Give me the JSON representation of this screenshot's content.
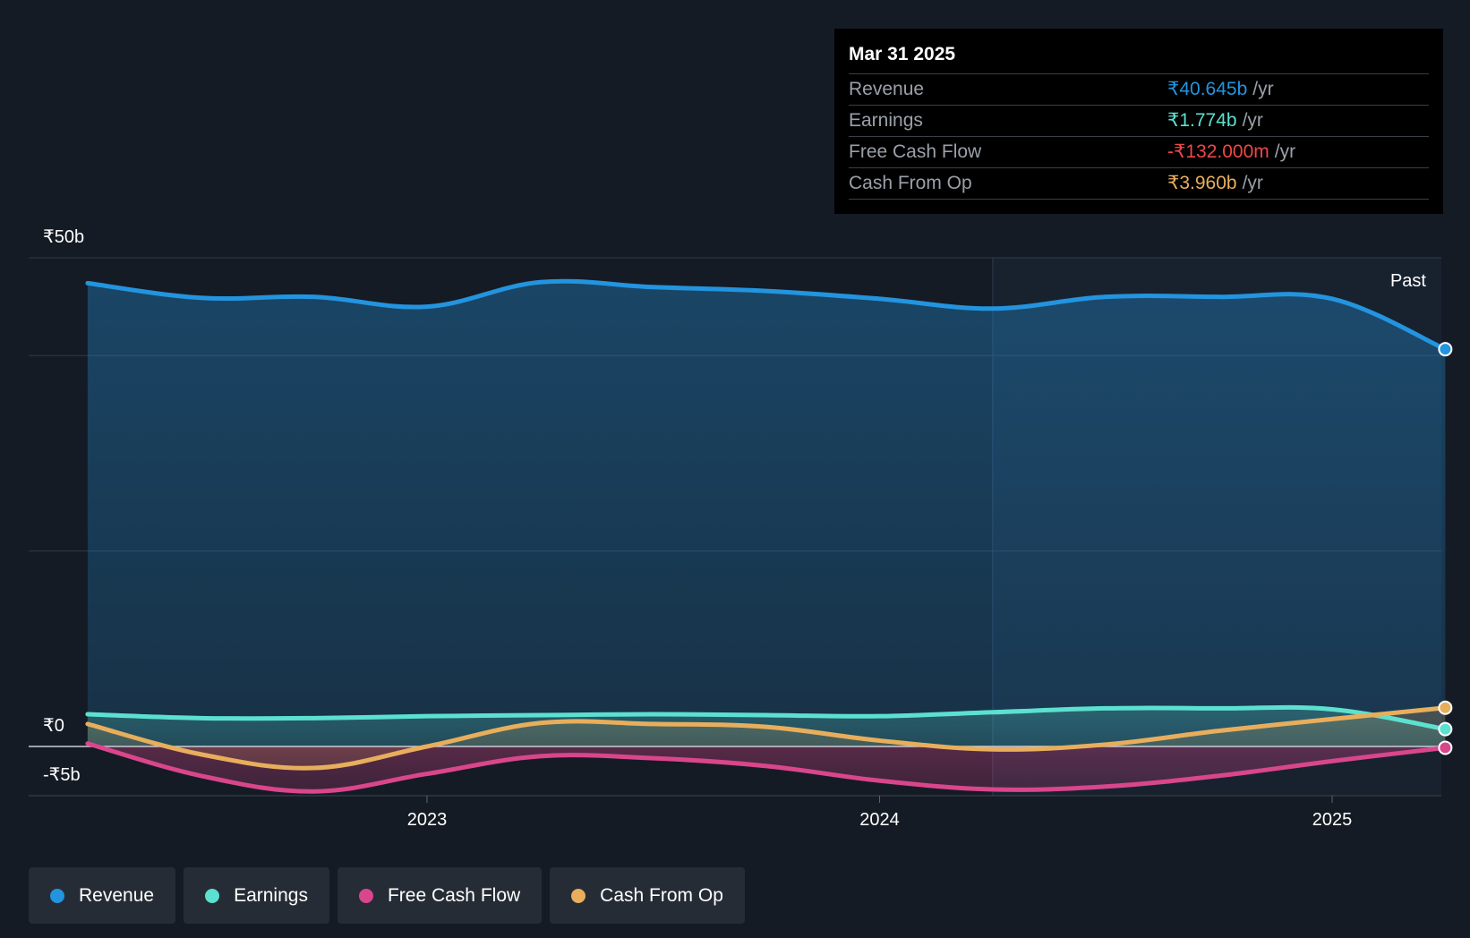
{
  "chart_data": {
    "type": "area",
    "title": "",
    "xlabel": "",
    "ylabel": "",
    "currency_symbol": "₹",
    "ylim": [
      -5,
      50
    ],
    "y_ticks": [
      {
        "value": 50,
        "label": "₹50b"
      },
      {
        "value": 0,
        "label": "₹0"
      },
      {
        "value": -5,
        "label": "-₹5b"
      }
    ],
    "x_ticks": [
      {
        "value": 2023.0,
        "label": "2023"
      },
      {
        "value": 2024.0,
        "label": "2024"
      },
      {
        "value": 2025.0,
        "label": "2025"
      }
    ],
    "xlim": [
      2022.12,
      2025.25
    ],
    "past_label": "Past",
    "past_divider_x": 2024.25,
    "series": [
      {
        "name": "Revenue",
        "color": "#2394df",
        "x": [
          2022.25,
          2022.5,
          2022.75,
          2023.0,
          2023.25,
          2023.5,
          2023.75,
          2024.0,
          2024.25,
          2024.5,
          2024.75,
          2025.0,
          2025.25
        ],
        "values": [
          47.4,
          45.9,
          46.0,
          45.0,
          47.5,
          47.0,
          46.6,
          45.8,
          44.8,
          46.0,
          46.0,
          45.8,
          40.645
        ]
      },
      {
        "name": "Earnings",
        "color": "#5ce0cf",
        "x": [
          2022.25,
          2022.5,
          2022.75,
          2023.0,
          2023.25,
          2023.5,
          2023.75,
          2024.0,
          2024.25,
          2024.5,
          2024.75,
          2025.0,
          2025.25
        ],
        "values": [
          3.3,
          2.9,
          2.9,
          3.1,
          3.2,
          3.3,
          3.2,
          3.1,
          3.5,
          3.9,
          3.9,
          3.8,
          1.774
        ]
      },
      {
        "name": "Free Cash Flow",
        "color": "#d9468c",
        "x": [
          2022.25,
          2022.5,
          2022.75,
          2023.0,
          2023.25,
          2023.5,
          2023.75,
          2024.0,
          2024.25,
          2024.5,
          2024.75,
          2025.0,
          2025.25
        ],
        "values": [
          0.3,
          -3.0,
          -4.6,
          -2.8,
          -1.0,
          -1.2,
          -2.0,
          -3.5,
          -4.4,
          -4.1,
          -3.0,
          -1.5,
          -0.132
        ]
      },
      {
        "name": "Cash From Op",
        "color": "#e8ae5c",
        "x": [
          2022.25,
          2022.5,
          2022.75,
          2023.0,
          2023.25,
          2023.5,
          2023.75,
          2024.0,
          2024.25,
          2024.5,
          2024.75,
          2025.0,
          2025.25
        ],
        "values": [
          2.3,
          -0.8,
          -2.2,
          0.0,
          2.4,
          2.3,
          2.0,
          0.6,
          -0.3,
          0.2,
          1.6,
          2.8,
          3.96
        ]
      }
    ]
  },
  "tooltip": {
    "date": "Mar 31 2025",
    "rows": [
      {
        "name": "Revenue",
        "value": "₹40.645b",
        "unit": "/yr",
        "color": "#2394df"
      },
      {
        "name": "Earnings",
        "value": "₹1.774b",
        "unit": "/yr",
        "color": "#5ce0cf"
      },
      {
        "name": "Free Cash Flow",
        "value": "-₹132.000m",
        "unit": "/yr",
        "color": "#f04747"
      },
      {
        "name": "Cash From Op",
        "value": "₹3.960b",
        "unit": "/yr",
        "color": "#e8ae5c"
      }
    ]
  },
  "legend": [
    {
      "label": "Revenue",
      "color": "#2394df"
    },
    {
      "label": "Earnings",
      "color": "#5ce0cf"
    },
    {
      "label": "Free Cash Flow",
      "color": "#d9468c"
    },
    {
      "label": "Cash From Op",
      "color": "#e8ae5c"
    }
  ]
}
